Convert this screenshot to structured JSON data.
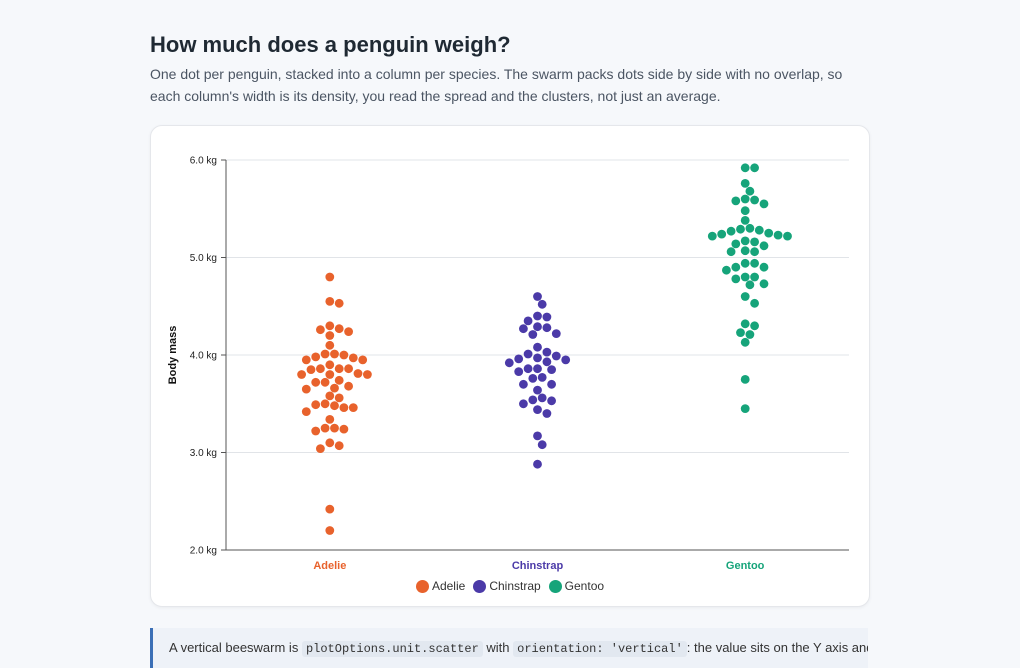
{
  "page": {
    "title": "How much does a penguin weigh?",
    "subtitle": "One dot per penguin, stacked into a column per species. The swarm packs dots side by side with no overlap, so each column's width is its density, you read the spread and the clusters, not just an average."
  },
  "note": {
    "text_1": "A vertical beeswarm is",
    "code_1": "plotOptions.unit.scatter",
    "text_2": "with",
    "code_2": "orientation: 'vertical'",
    "text_3": ": the value sits on the Y axis and each category"
  },
  "colors": {
    "Adelie": "#e8622c",
    "Chinstrap": "#4b3aa8",
    "Gentoo": "#16a47a",
    "grid": "#e1e4e8",
    "axis": "#555555"
  },
  "chart_data": {
    "type": "scatter",
    "subtype": "vertical-beeswarm",
    "categories": [
      "Adelie",
      "Chinstrap",
      "Gentoo"
    ],
    "ylabel": "Body mass",
    "ylim": [
      2.0,
      6.0
    ],
    "yticks": [
      2.0,
      3.0,
      4.0,
      5.0,
      6.0
    ],
    "ytick_labels": [
      "2.0 kg",
      "3.0 kg",
      "4.0 kg",
      "5.0 kg",
      "6.0 kg"
    ],
    "grid": true,
    "legend_position": "bottom",
    "series": [
      {
        "name": "Adelie",
        "values": [
          4.8,
          4.55,
          4.53,
          4.3,
          4.27,
          4.26,
          4.24,
          4.2,
          4.1,
          4.01,
          4.01,
          4.0,
          3.98,
          3.97,
          3.95,
          3.95,
          3.9,
          3.86,
          3.86,
          3.86,
          3.85,
          3.81,
          3.8,
          3.8,
          3.8,
          3.74,
          3.72,
          3.72,
          3.68,
          3.66,
          3.65,
          3.58,
          3.56,
          3.5,
          3.49,
          3.48,
          3.46,
          3.46,
          3.42,
          3.34,
          3.25,
          3.25,
          3.24,
          3.22,
          3.1,
          3.07,
          3.04,
          2.42,
          2.2
        ]
      },
      {
        "name": "Chinstrap",
        "values": [
          4.6,
          4.52,
          4.4,
          4.39,
          4.35,
          4.29,
          4.28,
          4.27,
          4.22,
          4.21,
          4.08,
          4.03,
          4.01,
          3.99,
          3.97,
          3.96,
          3.95,
          3.93,
          3.92,
          3.86,
          3.86,
          3.85,
          3.83,
          3.77,
          3.76,
          3.7,
          3.7,
          3.64,
          3.56,
          3.54,
          3.53,
          3.5,
          3.44,
          3.4,
          3.17,
          3.08,
          2.88
        ]
      },
      {
        "name": "Gentoo",
        "values": [
          5.92,
          5.92,
          5.76,
          5.68,
          5.6,
          5.59,
          5.58,
          5.55,
          5.48,
          5.38,
          5.3,
          5.29,
          5.28,
          5.27,
          5.25,
          5.24,
          5.23,
          5.22,
          5.22,
          5.17,
          5.16,
          5.14,
          5.12,
          5.07,
          5.06,
          5.06,
          4.94,
          4.94,
          4.9,
          4.9,
          4.87,
          4.8,
          4.8,
          4.78,
          4.73,
          4.72,
          4.6,
          4.53,
          4.32,
          4.3,
          4.23,
          4.21,
          4.13,
          3.75,
          3.45
        ]
      }
    ]
  }
}
